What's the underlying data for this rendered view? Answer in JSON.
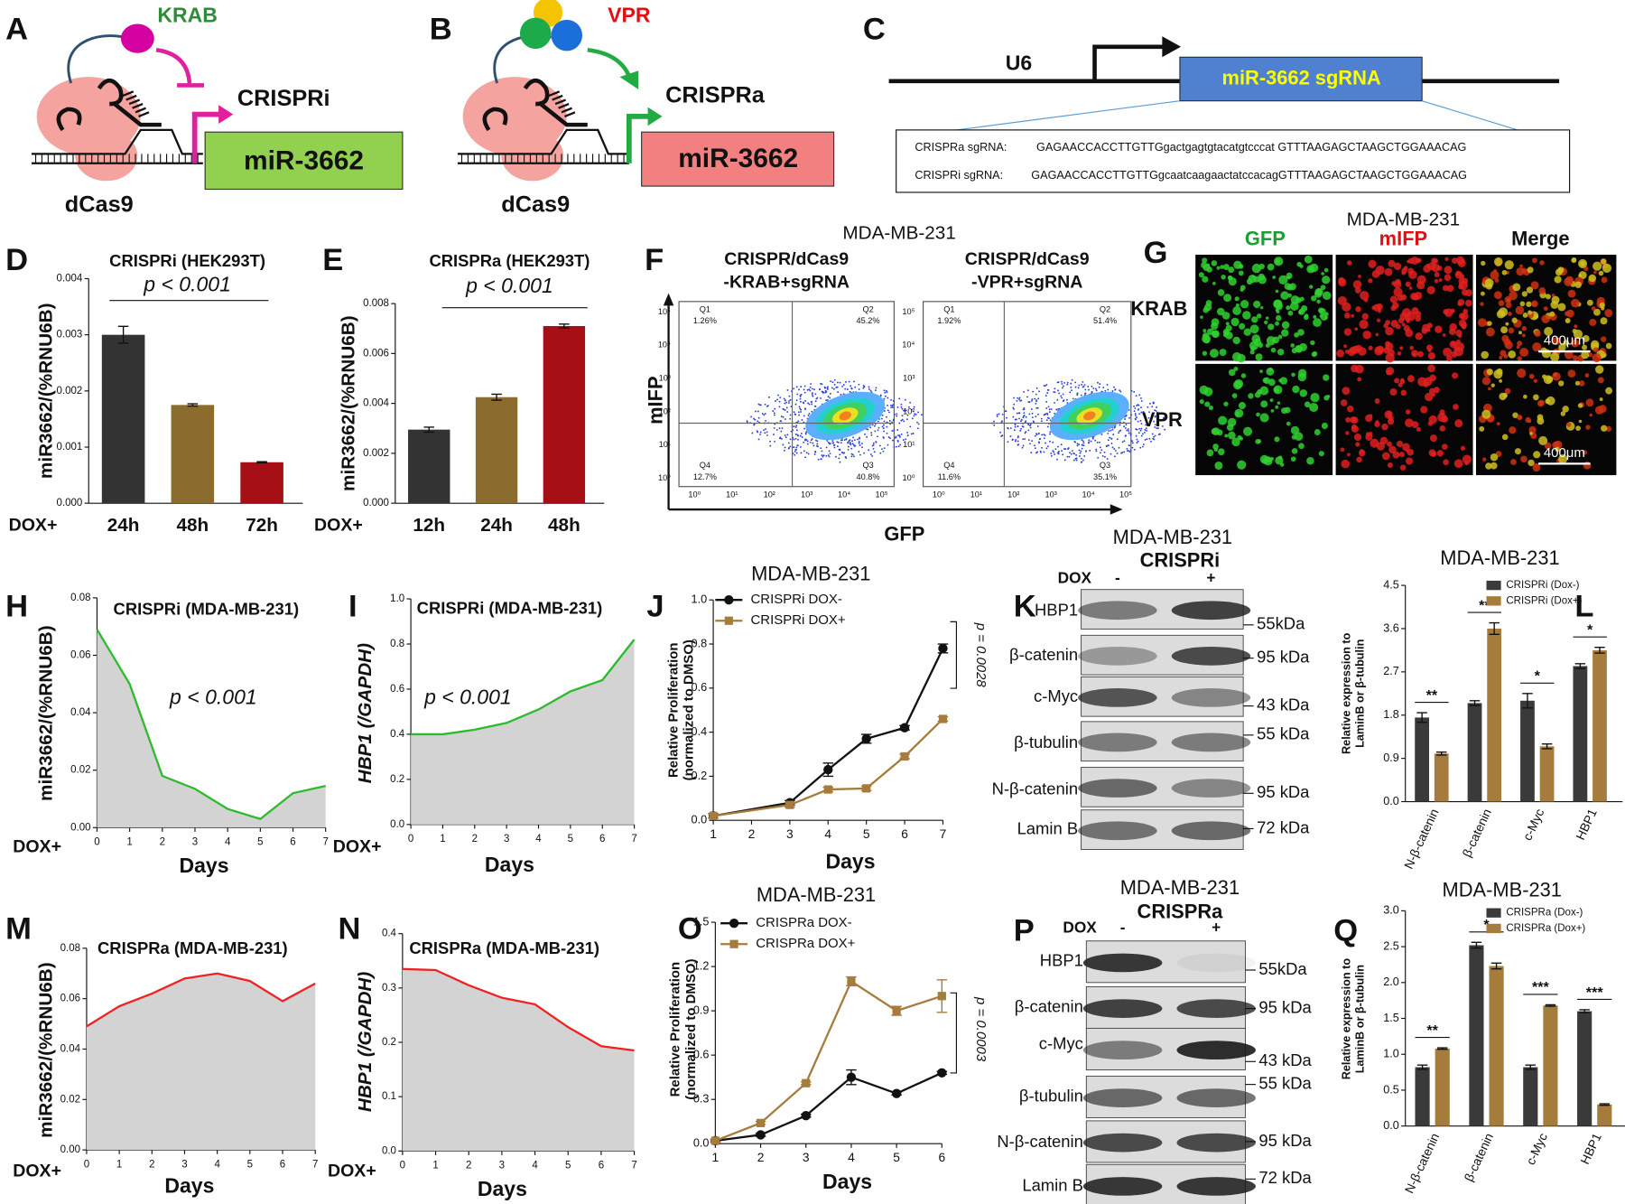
{
  "diagrams": {
    "A": {
      "panel": "A",
      "effector": "KRAB",
      "mode": "CRISPRi",
      "target": "miR-3662",
      "protein": "dCas9"
    },
    "B": {
      "panel": "B",
      "effector": "VPR",
      "mode": "CRISPRa",
      "target": "miR-3662",
      "protein": "dCas9"
    },
    "C": {
      "panel": "C",
      "promoter": "U6",
      "construct": "miR-3662 sgRNA",
      "sequences": [
        {
          "name": "CRISPRa sgRNA:",
          "sequence": "GAGAACCACCTTGTTGgactgagtgtacatgtcccat GTTTAAGAGCTAAGCTGGAAACAG"
        },
        {
          "name": "CRISPRi sgRNA:",
          "sequence": "GAGAACCACCTTGTTGgcaatcaagaactatccacagGTTTAAGAGCTAAGCTGGAAACAG"
        }
      ]
    }
  },
  "flow_cytometry": {
    "panel": "F",
    "title": "MDA-MB-231",
    "ylabel": "mIFP",
    "xlabel": "GFP",
    "ticks": [
      "10⁰",
      "10¹",
      "10²",
      "10³",
      "10⁴",
      "10⁵"
    ],
    "plots": [
      {
        "title": [
          "CRISPR/dCas9",
          "-KRAB+sgRNA"
        ],
        "quadrants": [
          {
            "name": "Q1",
            "value": "1.26%"
          },
          {
            "name": "Q2",
            "value": "45.2%"
          },
          {
            "name": "Q4",
            "value": "12.7%"
          },
          {
            "name": "Q3",
            "value": "40.8%"
          }
        ]
      },
      {
        "title": [
          "CRISPR/dCas9",
          "-VPR+sgRNA"
        ],
        "quadrants": [
          {
            "name": "Q1",
            "value": "1.92%"
          },
          {
            "name": "Q2",
            "value": "51.4%"
          },
          {
            "name": "Q4",
            "value": "11.6%"
          },
          {
            "name": "Q3",
            "value": "35.1%"
          }
        ]
      }
    ]
  },
  "microscopy": {
    "panel": "G",
    "title": "MDA-MB-231",
    "columns": [
      "GFP",
      "mIFP",
      "Merge"
    ],
    "rows": [
      "KRAB",
      "VPR"
    ],
    "scale_bar": "400μm"
  },
  "western_blots": [
    {
      "panel": "K",
      "title": "MDA-MB-231",
      "mode": "CRISPRi",
      "treatment": "DOX",
      "lanes": [
        "-",
        "+"
      ],
      "proteins": [
        "HBP1",
        "β-catenin",
        "c-Myc",
        "β-tubulin",
        "N-β-catenin",
        "Lamin B"
      ],
      "sizes": [
        "55kDa",
        "95 kDa",
        "43 kDa",
        "55 kDa",
        "95 kDa",
        "72 kDa"
      ]
    },
    {
      "panel": "P",
      "title": "MDA-MB-231",
      "mode": "CRISPRa",
      "treatment": "DOX",
      "lanes": [
        "-",
        "+"
      ],
      "proteins": [
        "HBP1",
        "β-catenin",
        "c-Myc",
        "β-tubulin",
        "N-β-catenin",
        "Lamin B"
      ],
      "sizes": [
        "55kDa",
        "95 kDa",
        "43 kDa",
        "55 kDa",
        "95 kDa",
        "72 kDa"
      ]
    }
  ],
  "chart_data": [
    {
      "panel": "D",
      "type": "bar",
      "title": "CRISPRi (HEK293T)",
      "annotation": "p < 0.001",
      "ylabel": "miR3662/(%RNU6B)",
      "x_prefix": "DOX+",
      "categories": [
        "24h",
        "48h",
        "72h"
      ],
      "values": [
        0.003,
        0.00175,
        0.00073
      ],
      "errors": [
        0.00015,
        2e-05,
        1e-05
      ],
      "colors": [
        "#333333",
        "#8c6b2f",
        "#a50f15"
      ],
      "ylim": [
        0,
        0.004
      ],
      "yticks": [
        {
          "value": 0,
          "label": "0.000"
        },
        0.001,
        0.002,
        0.003,
        0.004
      ]
    },
    {
      "panel": "E",
      "type": "bar",
      "title": "CRISPRa (HEK293T)",
      "annotation": "p < 0.001",
      "ylabel": "miR3662/(%RNU6B)",
      "x_prefix": "DOX+",
      "categories": [
        "12h",
        "24h",
        "48h"
      ],
      "values": [
        0.00295,
        0.00425,
        0.0071
      ],
      "errors": [
        0.0001,
        0.00012,
        8e-05
      ],
      "colors": [
        "#333333",
        "#8c6b2f",
        "#a50f15"
      ],
      "ylim": [
        0,
        0.008
      ],
      "yticks": [
        {
          "value": 0,
          "label": "0.000"
        },
        0.002,
        0.004,
        0.006,
        0.008
      ]
    },
    {
      "panel": "H",
      "type": "area",
      "title": "CRISPRi (MDA-MB-231)",
      "annotation": "p < 0.001",
      "ylabel": "miR3662/(%RNU6B)",
      "xlabel": "Days",
      "x_prefix": "DOX+",
      "x": [
        0,
        1,
        2,
        3,
        4,
        5,
        6,
        7
      ],
      "values": [
        0.069,
        0.05,
        0.018,
        0.0135,
        0.0065,
        0.003,
        0.012,
        0.0145
      ],
      "color": "#2dbb2d",
      "xlim": [
        0,
        7
      ],
      "xticks": [
        0,
        1,
        2,
        3,
        4,
        5,
        6,
        7
      ],
      "ylim": [
        0,
        0.08
      ],
      "yticks": [
        {
          "value": 0,
          "label": "0.00"
        },
        0.02,
        0.04,
        0.06,
        0.08
      ]
    },
    {
      "panel": "I",
      "type": "area",
      "title": "CRISPRi (MDA-MB-231)",
      "annotation": "p < 0.001",
      "ylabel": "HBP1 (/GAPDH)",
      "xlabel": "Days",
      "x_prefix": "DOX+",
      "x": [
        0,
        1,
        2,
        3,
        4,
        5,
        6,
        7
      ],
      "values": [
        0.4,
        0.4,
        0.42,
        0.45,
        0.51,
        0.59,
        0.64,
        0.82
      ],
      "color": "#2dbb2d",
      "xlim": [
        0,
        7
      ],
      "xticks": [
        0,
        1,
        2,
        3,
        4,
        5,
        6,
        7
      ],
      "ylim": [
        0,
        1
      ],
      "yticks": [
        {
          "value": 0,
          "label": "0.0"
        },
        0.2,
        0.4,
        0.6,
        0.8,
        {
          "value": 1,
          "label": "1.0"
        }
      ]
    },
    {
      "panel": "J",
      "type": "line",
      "title": "MDA-MB-231",
      "annotation": "p = 0.0028",
      "ylabel": [
        "Relative Proliferation",
        "(normalized to DMSO)"
      ],
      "xlabel": "Days",
      "x": [
        1,
        3,
        4,
        5,
        6,
        7
      ],
      "series": [
        {
          "name": "CRISPRi DOX-",
          "color": "#111111",
          "values": [
            0.02,
            0.08,
            0.23,
            0.37,
            0.42,
            0.78
          ],
          "errors": [
            0.01,
            0.01,
            0.03,
            0.02,
            0.01,
            0.02
          ]
        },
        {
          "name": "CRISPRi DOX+",
          "color": "#a67c3d",
          "values": [
            0.02,
            0.07,
            0.14,
            0.145,
            0.29,
            0.46
          ],
          "errors": [
            0.01,
            0.01,
            0.01,
            0.01,
            0.01,
            0.01
          ]
        }
      ],
      "xlim": [
        1,
        7
      ],
      "xticks": [
        1,
        2,
        3,
        4,
        5,
        6,
        7
      ],
      "ylim": [
        0,
        1
      ],
      "yticks": [
        {
          "value": 0,
          "label": "0.0"
        },
        0.2,
        0.4,
        0.6,
        0.8,
        {
          "value": 1,
          "label": "1.0"
        }
      ]
    },
    {
      "panel": "L",
      "type": "grouped_bar",
      "title": "MDA-MB-231",
      "ylabel": [
        "Relative expression to",
        "LaminB or β-tubulin"
      ],
      "categories": [
        "N-β-catenin",
        "β-catenin",
        "c-Myc",
        "HBP1"
      ],
      "series": [
        {
          "name": "CRISPRi (Dox-)",
          "color": "#3a3a3a",
          "values": [
            1.75,
            2.05,
            2.1,
            2.82
          ],
          "errors": [
            0.1,
            0.05,
            0.15,
            0.05
          ]
        },
        {
          "name": "CRISPRi (Dox+)",
          "color": "#a67c3d",
          "values": [
            1,
            3.6,
            1.15,
            3.15
          ],
          "errors": [
            0.03,
            0.12,
            0.05,
            0.06
          ]
        }
      ],
      "significance": [
        "**",
        "**",
        "*",
        "*"
      ],
      "ylim": [
        0,
        4.5
      ],
      "yticks": [
        {
          "value": 0,
          "label": "0.0"
        },
        0.9,
        1.8,
        2.7,
        3.6,
        4.5
      ]
    },
    {
      "panel": "M",
      "type": "area",
      "title": "CRISPRa (MDA-MB-231)",
      "annotation": "p < 0.001",
      "ylabel": "miR3662/(%RNU6B)",
      "xlabel": "Days",
      "x_prefix": "DOX+",
      "x": [
        0,
        1,
        2,
        3,
        4,
        5,
        6,
        7
      ],
      "values": [
        0.049,
        0.057,
        0.062,
        0.068,
        0.07,
        0.067,
        0.059,
        0.066
      ],
      "color": "#ee2222",
      "xlim": [
        0,
        7
      ],
      "xticks": [
        0,
        1,
        2,
        3,
        4,
        5,
        6,
        7
      ],
      "ylim": [
        0,
        0.08
      ],
      "yticks": [
        {
          "value": 0,
          "label": "0.00"
        },
        0.02,
        0.04,
        0.06,
        0.08
      ]
    },
    {
      "panel": "N",
      "type": "area",
      "title": "CRISPRa (MDA-MB-231)",
      "annotation": "p < 0.001",
      "ylabel": "HBP1 (/GAPDH)",
      "xlabel": "Days",
      "x_prefix": "DOX+",
      "x": [
        0,
        1,
        2,
        3,
        4,
        5,
        6,
        7
      ],
      "values": [
        0.335,
        0.333,
        0.305,
        0.282,
        0.27,
        0.228,
        0.193,
        0.185
      ],
      "color": "#ee2222",
      "xlim": [
        0,
        7
      ],
      "xticks": [
        0,
        1,
        2,
        3,
        4,
        5,
        6,
        7
      ],
      "ylim": [
        0,
        0.4
      ],
      "yticks": [
        {
          "value": 0,
          "label": "0.0"
        },
        0.1,
        0.2,
        0.3,
        0.4
      ]
    },
    {
      "panel": "O",
      "type": "line",
      "title": "MDA-MB-231",
      "annotation": "p = 0.0003",
      "ylabel": [
        "Relative Proliferation",
        "(normalized to DMSO)"
      ],
      "xlabel": "Days",
      "x": [
        1,
        2,
        3,
        4,
        5,
        6
      ],
      "series": [
        {
          "name": "CRISPRa DOX-",
          "color": "#111111",
          "values": [
            0.02,
            0.06,
            0.19,
            0.45,
            0.34,
            0.48
          ],
          "errors": [
            0.01,
            0.01,
            0.01,
            0.05,
            0.01,
            0.01
          ]
        },
        {
          "name": "CRISPRa DOX+",
          "color": "#a67c3d",
          "values": [
            0.02,
            0.14,
            0.41,
            1.1,
            0.9,
            1
          ],
          "errors": [
            0.01,
            0.01,
            0.01,
            0.03,
            0.03,
            0.11
          ]
        }
      ],
      "xlim": [
        1,
        6
      ],
      "xticks": [
        1,
        2,
        3,
        4,
        5,
        6
      ],
      "ylim": [
        0,
        1.5
      ],
      "yticks": [
        {
          "value": 0,
          "label": "0.0"
        },
        0.3,
        0.6,
        0.9,
        1.2,
        1.5
      ]
    },
    {
      "panel": "Q",
      "type": "grouped_bar",
      "title": "MDA-MB-231",
      "ylabel": [
        "Relative expression to",
        "LaminB or β-tubulin"
      ],
      "categories": [
        "N-β-catenin",
        "β-catenin",
        "c-Myc",
        "HBP1"
      ],
      "series": [
        {
          "name": "CRISPRa (Dox-)",
          "color": "#3a3a3a",
          "values": [
            0.82,
            2.52,
            0.82,
            1.6
          ],
          "errors": [
            0.03,
            0.04,
            0.03,
            0.02
          ]
        },
        {
          "name": "CRISPRa (Dox+)",
          "color": "#a67c3d",
          "values": [
            1.08,
            2.23,
            1.68,
            0.3
          ],
          "errors": [
            0.01,
            0.04,
            0.01,
            0.01
          ]
        }
      ],
      "significance": [
        "**",
        "*",
        "***",
        "***"
      ],
      "ylim": [
        0,
        3
      ],
      "yticks": [
        {
          "value": 0,
          "label": "0.0"
        },
        0.5,
        {
          "value": 1,
          "label": "1.0"
        },
        1.5,
        {
          "value": 2,
          "label": "2.0"
        },
        2.5,
        {
          "value": 3,
          "label": "3.0"
        }
      ]
    }
  ]
}
